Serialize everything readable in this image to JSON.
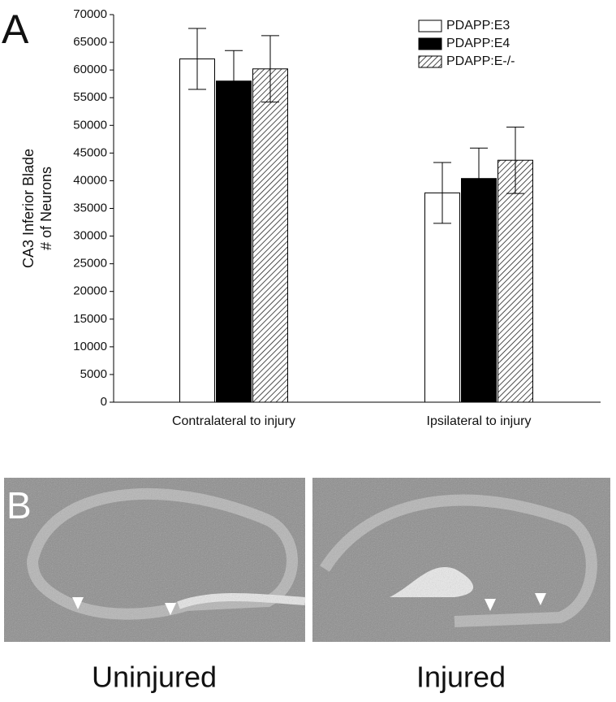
{
  "panel_a": "A",
  "panel_b": "B",
  "chart_data": {
    "type": "bar",
    "ylabel": [
      "CA3 Inferior Blade",
      "# of Neurons"
    ],
    "categories": [
      "Contralateral to injury",
      "Ipsilateral to injury"
    ],
    "series": [
      {
        "name": "PDAPP:E3",
        "color": "#ffffff",
        "hatch": false,
        "values": [
          62000,
          37800
        ],
        "errors": [
          5500,
          5500
        ]
      },
      {
        "name": "PDAPP:E4",
        "color": "#000000",
        "hatch": false,
        "values": [
          58000,
          40400
        ],
        "errors": [
          5500,
          5500
        ]
      },
      {
        "name": "PDAPP:E-/-",
        "color": "#ffffff",
        "hatch": true,
        "values": [
          60200,
          43700
        ],
        "errors": [
          6000,
          6000
        ]
      }
    ],
    "ylim": [
      0,
      70000
    ],
    "yticks": [
      0,
      5000,
      10000,
      15000,
      20000,
      25000,
      30000,
      35000,
      40000,
      45000,
      50000,
      55000,
      60000,
      65000,
      70000
    ],
    "legend": "top-right"
  },
  "images": [
    {
      "caption": "Uninjured"
    },
    {
      "caption": "Injured"
    }
  ]
}
